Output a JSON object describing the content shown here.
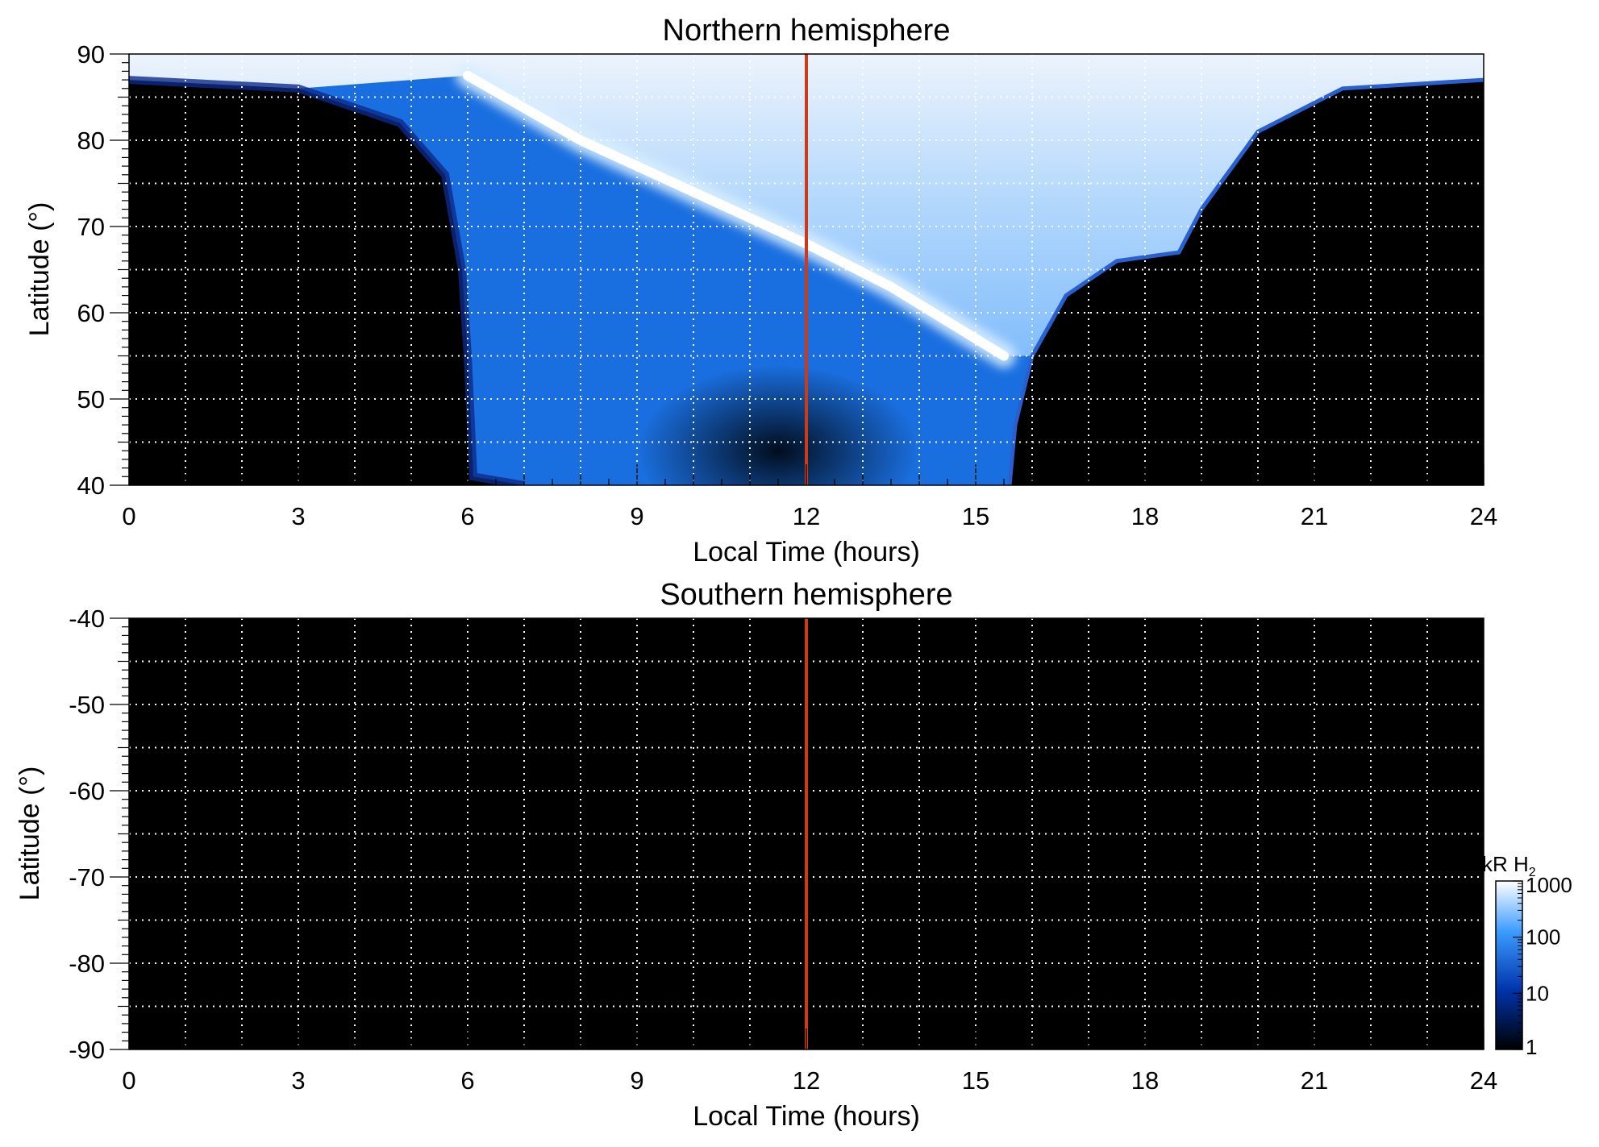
{
  "chart_data": [
    {
      "type": "heatmap",
      "title": "Northern hemisphere",
      "xlabel": "Local Time (hours)",
      "ylabel": "Latitude (°)",
      "xlim": [
        0,
        24
      ],
      "ylim": [
        40,
        90
      ],
      "x_ticks": [
        0,
        3,
        6,
        9,
        12,
        15,
        18,
        21,
        24
      ],
      "y_ticks": [
        40,
        50,
        60,
        70,
        80,
        90
      ],
      "x_grid_step": 1,
      "y_grid_step": 5,
      "grid": true,
      "background": "#000000",
      "reference_line": {
        "x": 12,
        "color": "#cc3a17"
      },
      "main_oval": [
        {
          "lt": 6.0,
          "lat": 87.5
        },
        {
          "lt": 8.0,
          "lat": 80.0
        },
        {
          "lt": 10.0,
          "lat": 74.0
        },
        {
          "lt": 12.0,
          "lat": 68.0
        },
        {
          "lt": 13.5,
          "lat": 63.0
        },
        {
          "lt": 14.5,
          "lat": 59.0
        },
        {
          "lt": 15.5,
          "lat": 55.0
        }
      ],
      "night_terminator_dawn": [
        {
          "lt": 0.0,
          "lat": 87.0
        },
        {
          "lt": 3.0,
          "lat": 86.0
        },
        {
          "lt": 4.8,
          "lat": 82.0
        },
        {
          "lt": 5.6,
          "lat": 76.0
        },
        {
          "lt": 5.9,
          "lat": 65.0
        },
        {
          "lt": 6.0,
          "lat": 55.0
        },
        {
          "lt": 6.1,
          "lat": 41.0
        },
        {
          "lt": 7.0,
          "lat": 40.0
        }
      ],
      "night_terminator_dusk": [
        {
          "lt": 15.6,
          "lat": 40.0
        },
        {
          "lt": 15.7,
          "lat": 47.0
        },
        {
          "lt": 16.0,
          "lat": 55.0
        },
        {
          "lt": 16.6,
          "lat": 62.0
        },
        {
          "lt": 17.5,
          "lat": 66.0
        },
        {
          "lt": 18.6,
          "lat": 67.0
        },
        {
          "lt": 19.0,
          "lat": 72.0
        },
        {
          "lt": 20.0,
          "lat": 81.0
        },
        {
          "lt": 21.5,
          "lat": 86.0
        },
        {
          "lt": 24.0,
          "lat": 87.0
        }
      ]
    },
    {
      "type": "heatmap",
      "title": "Southern hemisphere",
      "xlabel": "Local Time (hours)",
      "ylabel": "Latitude (°)",
      "xlim": [
        0,
        24
      ],
      "ylim": [
        -90,
        -40
      ],
      "x_ticks": [
        0,
        3,
        6,
        9,
        12,
        15,
        18,
        21,
        24
      ],
      "y_ticks": [
        -40,
        -50,
        -60,
        -70,
        -80,
        -90
      ],
      "x_grid_step": 1,
      "y_grid_step": 5,
      "grid": true,
      "background": "#000000",
      "reference_line": {
        "x": 12,
        "color": "#cc3a17"
      }
    }
  ],
  "colorbar": {
    "label": "kR H",
    "label_subscript": "2",
    "scale": "log",
    "ticks": [
      1000,
      100,
      10,
      1
    ],
    "range": [
      1,
      1000
    ],
    "colors": [
      "#ffffff",
      "#3b9cff",
      "#0033aa",
      "#000000"
    ]
  }
}
